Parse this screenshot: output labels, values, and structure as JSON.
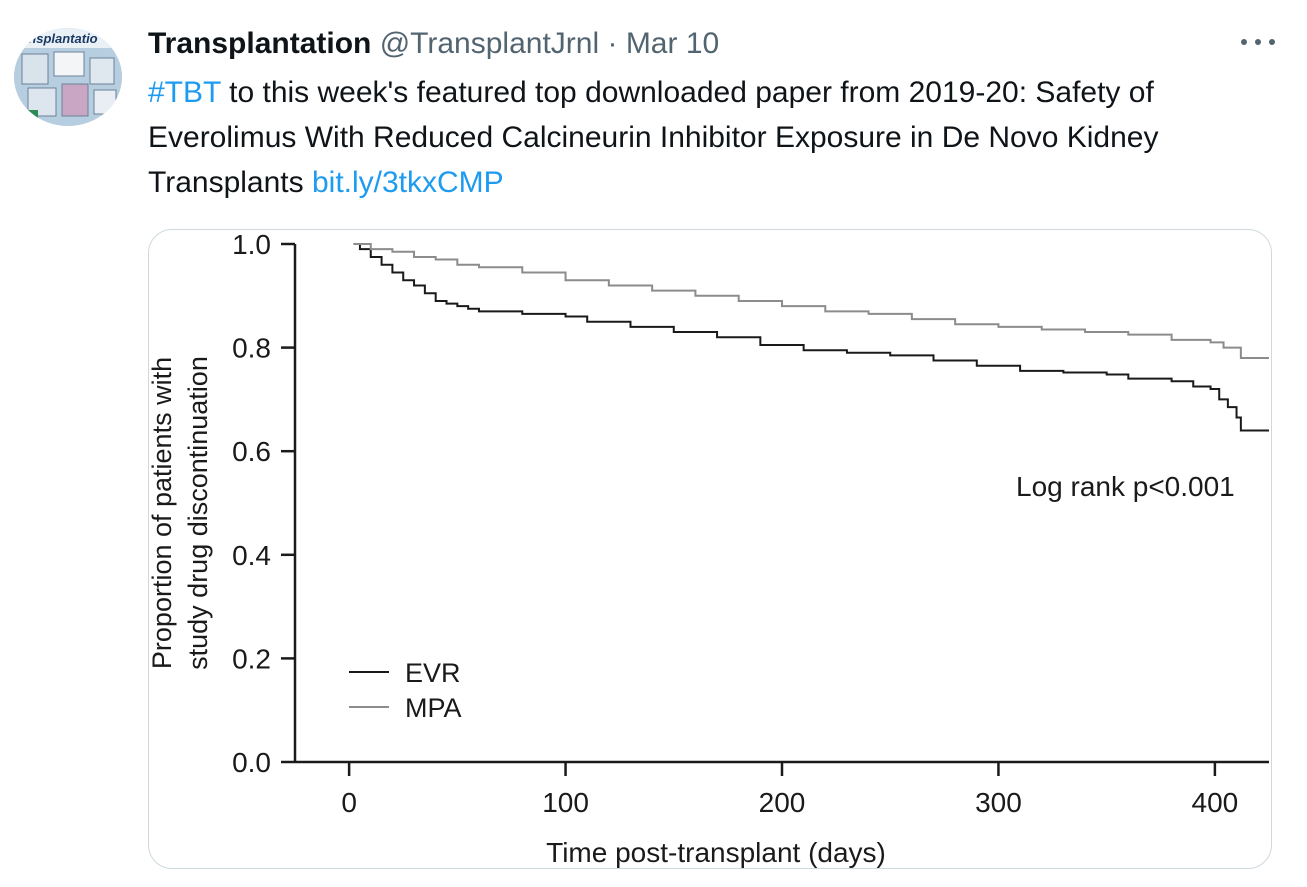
{
  "tweet": {
    "author_name": "Transplantation",
    "handle": "@TransplantJrnl",
    "separator": "·",
    "date": "Mar 10",
    "avatar_text": "ransplantatio",
    "text": {
      "hashtag": "#TBT",
      "body": " to this week's featured top downloaded paper from 2019-20: Safety of Everolimus With Reduced Calcineurin Inhibitor Exposure in De Novo Kidney Transplants ",
      "link": "bit.ly/3tkxCMP"
    },
    "more_icon": "more-horizontal-icon"
  },
  "colors": {
    "link": "#1d9bf0",
    "evr": "#1a1a1a",
    "mpa": "#8c8c8c"
  },
  "chart_data": {
    "type": "line",
    "xlabel": "Time post-transplant (days)",
    "ylabel_line1": "Proportion of patients with",
    "ylabel_line2": "study drug discontinuation",
    "xlim": [
      -25,
      425
    ],
    "ylim": [
      0,
      1.0
    ],
    "x_ticks": [
      0,
      100,
      200,
      300,
      400
    ],
    "x_tick_labels": [
      "0",
      "100",
      "200",
      "300",
      "400"
    ],
    "y_ticks": [
      0,
      0.2,
      0.4,
      0.6,
      0.8,
      1.0
    ],
    "y_tick_labels": [
      "0.0",
      "0.2",
      "0.4",
      "0.6",
      "0.8",
      "1.0"
    ],
    "annotation": "Log rank p<0.001",
    "legend_position": "bottom-left",
    "series": [
      {
        "name": "EVR",
        "color": "#1a1a1a",
        "points": [
          [
            2,
            1.0
          ],
          [
            5,
            0.99
          ],
          [
            10,
            0.975
          ],
          [
            15,
            0.96
          ],
          [
            20,
            0.945
          ],
          [
            25,
            0.93
          ],
          [
            30,
            0.92
          ],
          [
            35,
            0.905
          ],
          [
            40,
            0.89
          ],
          [
            45,
            0.885
          ],
          [
            50,
            0.88
          ],
          [
            55,
            0.875
          ],
          [
            60,
            0.87
          ],
          [
            80,
            0.865
          ],
          [
            100,
            0.86
          ],
          [
            110,
            0.85
          ],
          [
            130,
            0.84
          ],
          [
            150,
            0.83
          ],
          [
            170,
            0.82
          ],
          [
            190,
            0.805
          ],
          [
            210,
            0.795
          ],
          [
            230,
            0.79
          ],
          [
            250,
            0.785
          ],
          [
            270,
            0.775
          ],
          [
            290,
            0.765
          ],
          [
            310,
            0.755
          ],
          [
            330,
            0.752
          ],
          [
            350,
            0.748
          ],
          [
            360,
            0.74
          ],
          [
            380,
            0.735
          ],
          [
            390,
            0.725
          ],
          [
            398,
            0.72
          ],
          [
            402,
            0.7
          ],
          [
            406,
            0.685
          ],
          [
            410,
            0.665
          ],
          [
            412,
            0.64
          ],
          [
            425,
            0.64
          ]
        ]
      },
      {
        "name": "MPA",
        "color": "#8c8c8c",
        "points": [
          [
            2,
            1.0
          ],
          [
            10,
            0.99
          ],
          [
            20,
            0.985
          ],
          [
            30,
            0.975
          ],
          [
            40,
            0.97
          ],
          [
            50,
            0.96
          ],
          [
            60,
            0.955
          ],
          [
            80,
            0.945
          ],
          [
            100,
            0.93
          ],
          [
            120,
            0.92
          ],
          [
            140,
            0.91
          ],
          [
            160,
            0.9
          ],
          [
            180,
            0.89
          ],
          [
            200,
            0.88
          ],
          [
            220,
            0.87
          ],
          [
            240,
            0.865
          ],
          [
            260,
            0.855
          ],
          [
            280,
            0.845
          ],
          [
            300,
            0.84
          ],
          [
            320,
            0.835
          ],
          [
            340,
            0.83
          ],
          [
            360,
            0.825
          ],
          [
            380,
            0.815
          ],
          [
            398,
            0.81
          ],
          [
            404,
            0.8
          ],
          [
            412,
            0.78
          ],
          [
            430,
            0.78
          ]
        ]
      }
    ]
  }
}
